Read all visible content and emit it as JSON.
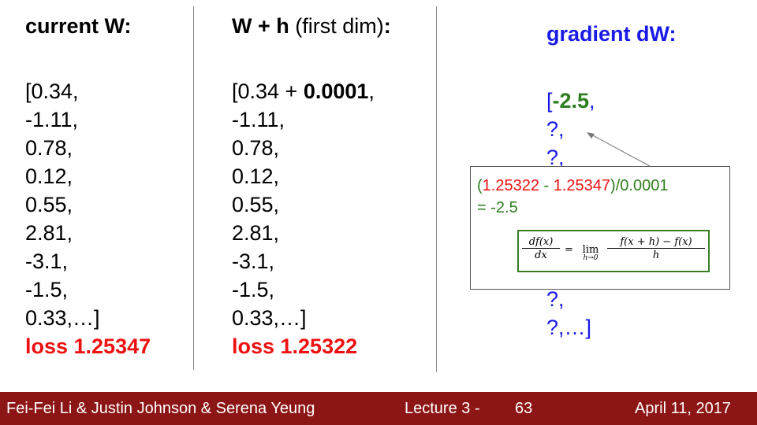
{
  "col1": {
    "heading": "current W:",
    "values": [
      "[0.34,",
      "-1.11,",
      "0.78,",
      "0.12,",
      "0.55,",
      "2.81,",
      "-3.1,",
      "-1.5,",
      "0.33,…]"
    ],
    "loss": "loss 1.25347"
  },
  "col2": {
    "heading_bold": "W + h",
    "heading_rest": " (first dim)",
    "heading_colon": ":",
    "first_prefix": "[0.34 + ",
    "first_bold": "0.0001",
    "first_suffix": ",",
    "values": [
      "-1.11,",
      "0.78,",
      "0.12,",
      "0.55,",
      "2.81,",
      "-3.1,",
      "-1.5,",
      "0.33,…]"
    ],
    "loss": "loss 1.25322"
  },
  "col3": {
    "heading": "gradient dW:",
    "first_bracket": "[",
    "first_value": "-2.5",
    "first_comma": ",",
    "values_top": [
      "?,",
      "?,"
    ],
    "values_bottom": [
      "?,",
      "?,…]"
    ]
  },
  "popup": {
    "open_paren": "(",
    "loss_new": "1.25322",
    "minus": " - ",
    "loss_old": "1.25347",
    "tail": ")/0.0001",
    "result": "= -2.5",
    "formula": {
      "lhs_num": "df(x)",
      "lhs_den": "dx",
      "equals": "=",
      "lim": "lim",
      "lim_sub": "h→0",
      "rhs_num": "f(x + h) − f(x)",
      "rhs_den": "h"
    }
  },
  "footer": {
    "authors": "Fei-Fei Li & Justin Johnson & Serena Yeung",
    "lecture": "Lecture 3 -",
    "slide_number": "63",
    "date": "April 11, 2017"
  },
  "colors": {
    "red": "#ee1111",
    "green": "#2e7d1f",
    "blue": "#1a1ae6",
    "footer_bg": "#8c1515"
  }
}
